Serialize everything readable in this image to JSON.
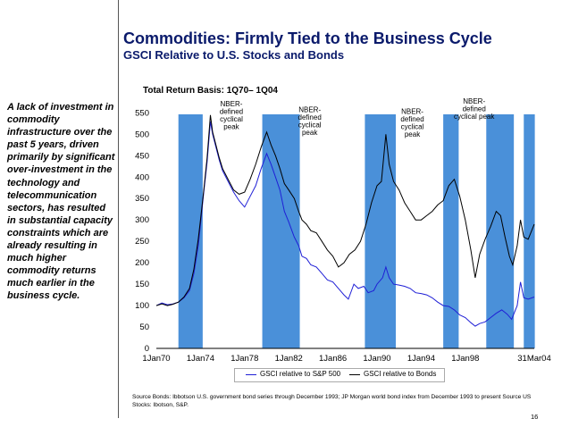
{
  "slide": {
    "title": "Commodities: Firmly Tied to the Business Cycle",
    "subtitle": "GSCI Relative to U.S. Stocks and Bonds",
    "sidebar_text": "A lack of investment in commodity infrastructure over the past 5 years, driven primarily by significant over-investment in the technology and telecommunication sectors, has resulted in substantial capacity constraints which are already resulting in much higher commodity returns much earlier in the business cycle.",
    "chart_basis": "Total Return Basis: 1Q70– 1Q04",
    "source_text": "Source Bonds:  Ibbotson U.S. government bond series through December 1993; JP Morgan world bond index from December 1993 to present   Source US Stocks: Ibotson, S&P.",
    "page_number": "16"
  },
  "chart_data": {
    "type": "line",
    "x_range": [
      1970,
      2004.25
    ],
    "y_range": [
      0,
      580
    ],
    "y_ticks": [
      0,
      50,
      100,
      150,
      200,
      250,
      300,
      350,
      400,
      450,
      500,
      550
    ],
    "x_ticks": [
      {
        "x": 1970,
        "label": "1Jan70"
      },
      {
        "x": 1974,
        "label": "1Jan74"
      },
      {
        "x": 1978,
        "label": "1Jan78"
      },
      {
        "x": 1982,
        "label": "1Jan82"
      },
      {
        "x": 1986,
        "label": "1Jan86"
      },
      {
        "x": 1990,
        "label": "1Jan90"
      },
      {
        "x": 1994,
        "label": "1Jan94"
      },
      {
        "x": 1998,
        "label": "1Jan98"
      },
      {
        "x": 2004.25,
        "label": "31Mar04"
      }
    ],
    "shaded_periods": [
      [
        1972.0,
        1974.2
      ],
      [
        1979.6,
        1983.0
      ],
      [
        1988.9,
        1991.7
      ],
      [
        1996.0,
        1997.4
      ],
      [
        1999.9,
        2002.4
      ],
      [
        2003.3,
        2004.3
      ]
    ],
    "annotations": [
      {
        "text": "NBER-\ndefined\ncyclical\npeak",
        "x": 1976.8,
        "y": 565
      },
      {
        "text": "NBER-\ndefined\ncyclical\npeak",
        "x": 1983.9,
        "y": 552
      },
      {
        "text": "NBER-\ndefined\ncyclical\npeak",
        "x": 1993.2,
        "y": 548
      },
      {
        "text": "NBER-\ndefined\ncyclical peak",
        "x": 1998.8,
        "y": 572
      }
    ],
    "series": [
      {
        "name": "GSCI relative to S&P 500",
        "color": "#1f1fd6",
        "points": [
          [
            1970.0,
            100
          ],
          [
            1970.5,
            106
          ],
          [
            1971.0,
            102
          ],
          [
            1971.5,
            104
          ],
          [
            1972.0,
            108
          ],
          [
            1972.5,
            118
          ],
          [
            1973.0,
            135
          ],
          [
            1973.4,
            175
          ],
          [
            1973.8,
            240
          ],
          [
            1974.0,
            290
          ],
          [
            1974.3,
            365
          ],
          [
            1974.6,
            435
          ],
          [
            1974.9,
            530
          ],
          [
            1975.1,
            500
          ],
          [
            1975.4,
            470
          ],
          [
            1975.7,
            440
          ],
          [
            1976.0,
            415
          ],
          [
            1976.5,
            390
          ],
          [
            1977.0,
            365
          ],
          [
            1977.5,
            345
          ],
          [
            1978.0,
            330
          ],
          [
            1978.5,
            355
          ],
          [
            1979.0,
            380
          ],
          [
            1979.5,
            420
          ],
          [
            1980.0,
            455
          ],
          [
            1980.4,
            430
          ],
          [
            1980.8,
            400
          ],
          [
            1981.2,
            370
          ],
          [
            1981.6,
            320
          ],
          [
            1982.0,
            295
          ],
          [
            1982.5,
            260
          ],
          [
            1982.9,
            240
          ],
          [
            1983.2,
            215
          ],
          [
            1983.6,
            210
          ],
          [
            1984.0,
            195
          ],
          [
            1984.5,
            190
          ],
          [
            1985.0,
            175
          ],
          [
            1985.5,
            160
          ],
          [
            1986.0,
            155
          ],
          [
            1986.5,
            140
          ],
          [
            1987.0,
            125
          ],
          [
            1987.4,
            115
          ],
          [
            1987.9,
            150
          ],
          [
            1988.3,
            140
          ],
          [
            1988.8,
            145
          ],
          [
            1989.2,
            130
          ],
          [
            1989.7,
            135
          ],
          [
            1990.0,
            150
          ],
          [
            1990.5,
            165
          ],
          [
            1990.8,
            190
          ],
          [
            1991.1,
            165
          ],
          [
            1991.5,
            150
          ],
          [
            1992.0,
            148
          ],
          [
            1992.5,
            145
          ],
          [
            1993.0,
            140
          ],
          [
            1993.5,
            130
          ],
          [
            1994.0,
            128
          ],
          [
            1994.5,
            125
          ],
          [
            1995.0,
            118
          ],
          [
            1995.5,
            108
          ],
          [
            1996.0,
            100
          ],
          [
            1996.5,
            98
          ],
          [
            1997.0,
            90
          ],
          [
            1997.5,
            78
          ],
          [
            1998.0,
            72
          ],
          [
            1998.5,
            60
          ],
          [
            1998.9,
            52
          ],
          [
            1999.3,
            58
          ],
          [
            1999.8,
            62
          ],
          [
            2000.3,
            72
          ],
          [
            2000.8,
            82
          ],
          [
            2001.3,
            90
          ],
          [
            2001.8,
            80
          ],
          [
            2002.2,
            68
          ],
          [
            2002.7,
            100
          ],
          [
            2003.0,
            155
          ],
          [
            2003.3,
            118
          ],
          [
            2003.7,
            115
          ],
          [
            2004.25,
            120
          ]
        ]
      },
      {
        "name": "GSCI relative to Bonds",
        "color": "#000000",
        "points": [
          [
            1970.0,
            100
          ],
          [
            1970.5,
            104
          ],
          [
            1971.0,
            100
          ],
          [
            1971.5,
            103
          ],
          [
            1972.0,
            108
          ],
          [
            1972.5,
            120
          ],
          [
            1973.0,
            140
          ],
          [
            1973.4,
            185
          ],
          [
            1973.8,
            255
          ],
          [
            1974.0,
            300
          ],
          [
            1974.3,
            370
          ],
          [
            1974.6,
            445
          ],
          [
            1974.9,
            545
          ],
          [
            1975.1,
            505
          ],
          [
            1975.4,
            475
          ],
          [
            1975.7,
            445
          ],
          [
            1976.0,
            420
          ],
          [
            1976.5,
            395
          ],
          [
            1977.0,
            370
          ],
          [
            1977.5,
            360
          ],
          [
            1978.0,
            365
          ],
          [
            1978.5,
            395
          ],
          [
            1979.0,
            430
          ],
          [
            1979.5,
            470
          ],
          [
            1980.0,
            505
          ],
          [
            1980.4,
            475
          ],
          [
            1980.8,
            450
          ],
          [
            1981.2,
            420
          ],
          [
            1981.6,
            385
          ],
          [
            1982.0,
            370
          ],
          [
            1982.5,
            350
          ],
          [
            1982.9,
            320
          ],
          [
            1983.2,
            300
          ],
          [
            1983.6,
            290
          ],
          [
            1984.0,
            275
          ],
          [
            1984.5,
            270
          ],
          [
            1985.0,
            250
          ],
          [
            1985.5,
            230
          ],
          [
            1986.0,
            215
          ],
          [
            1986.5,
            190
          ],
          [
            1987.0,
            200
          ],
          [
            1987.5,
            220
          ],
          [
            1988.0,
            230
          ],
          [
            1988.5,
            250
          ],
          [
            1989.0,
            290
          ],
          [
            1989.5,
            340
          ],
          [
            1990.0,
            380
          ],
          [
            1990.4,
            390
          ],
          [
            1990.8,
            500
          ],
          [
            1991.1,
            430
          ],
          [
            1991.5,
            390
          ],
          [
            1992.0,
            370
          ],
          [
            1992.5,
            340
          ],
          [
            1993.0,
            320
          ],
          [
            1993.5,
            300
          ],
          [
            1994.0,
            300
          ],
          [
            1994.5,
            310
          ],
          [
            1995.0,
            320
          ],
          [
            1995.5,
            335
          ],
          [
            1996.0,
            345
          ],
          [
            1996.5,
            380
          ],
          [
            1997.0,
            395
          ],
          [
            1997.5,
            355
          ],
          [
            1998.0,
            300
          ],
          [
            1998.5,
            230
          ],
          [
            1998.9,
            165
          ],
          [
            1999.3,
            220
          ],
          [
            1999.8,
            255
          ],
          [
            2000.3,
            285
          ],
          [
            2000.8,
            320
          ],
          [
            2001.2,
            310
          ],
          [
            2001.6,
            260
          ],
          [
            2002.0,
            215
          ],
          [
            2002.3,
            195
          ],
          [
            2002.7,
            240
          ],
          [
            2003.0,
            300
          ],
          [
            2003.3,
            260
          ],
          [
            2003.7,
            255
          ],
          [
            2004.25,
            290
          ]
        ]
      }
    ]
  }
}
